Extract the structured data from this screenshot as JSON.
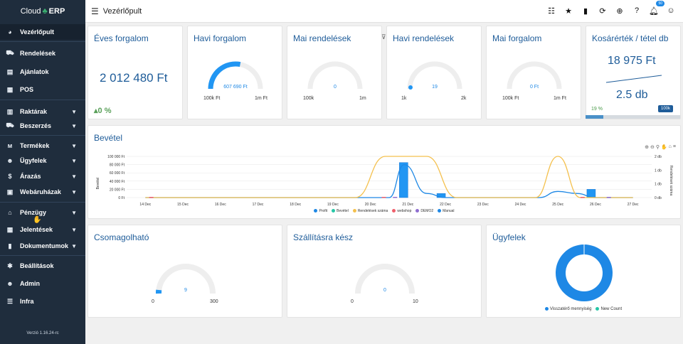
{
  "brand": {
    "name": "Cloud",
    "suffix": "ERP"
  },
  "sidebar": {
    "items": [
      {
        "label": "Vezérlőpult",
        "icon": "palette-icon"
      },
      {
        "label": "Rendelések",
        "icon": "cart-icon"
      },
      {
        "label": "Ajánlatok",
        "icon": "document-icon"
      },
      {
        "label": "POS",
        "icon": "register-icon"
      },
      {
        "label": "Raktárak",
        "icon": "warehouse-icon"
      },
      {
        "label": "Beszerzés",
        "icon": "truck-icon"
      },
      {
        "label": "Termékek",
        "icon": "products-icon"
      },
      {
        "label": "Ügyfelek",
        "icon": "users-icon"
      },
      {
        "label": "Árazás",
        "icon": "dollar-icon"
      },
      {
        "label": "Webáruházak",
        "icon": "store-icon"
      },
      {
        "label": "Pénzügy",
        "icon": "bank-icon"
      },
      {
        "label": "Jelentések",
        "icon": "table-icon"
      },
      {
        "label": "Dokumentumok",
        "icon": "file-icon"
      },
      {
        "label": "Beállítások",
        "icon": "gear-icon"
      },
      {
        "label": "Admin",
        "icon": "user-gear-icon"
      },
      {
        "label": "Infra",
        "icon": "server-icon"
      }
    ],
    "version": "Verzió 1.16.24-rc"
  },
  "topbar": {
    "title": "Vezérlőpult",
    "notification_count": "50"
  },
  "cards": {
    "yearly": {
      "title": "Éves forgalom",
      "value": "2 012 480 Ft",
      "trend": "0 %"
    },
    "monthly": {
      "title": "Havi forgalom",
      "value": "607 690 Ft",
      "min": "100k Ft",
      "max": "1m Ft",
      "level": 0.56
    },
    "daily_orders": {
      "title": "Mai rendelések",
      "value": "0",
      "min": "100k",
      "max": "1m",
      "level": 0
    },
    "monthly_orders": {
      "title": "Havi rendelések",
      "value": "19",
      "min": "1k",
      "max": "2k",
      "level": 0.02
    },
    "daily_revenue": {
      "title": "Mai forgalom",
      "value": "0 Ft",
      "min": "100k Ft",
      "max": "1m Ft",
      "level": 0
    },
    "basket": {
      "title": "Kosárérték / tétel db",
      "value": "18 975 Ft",
      "count": "2.5 db",
      "pct": "19 %",
      "target": "100k",
      "progress": 0.19
    },
    "packable": {
      "title": "Csomagolható",
      "value": "9",
      "min": "0",
      "max": "300",
      "level": 0.03
    },
    "ready": {
      "title": "Szállításra kész",
      "value": "0",
      "min": "0",
      "max": "10",
      "level": 0
    },
    "customers": {
      "title": "Ügyfelek"
    }
  },
  "revenue_chart": {
    "title": "Bevétel",
    "ylabel_left": "Bevétel",
    "ylabel_right": "Rendelések száma"
  },
  "customers_legend": [
    {
      "name": "Visszatérő mennyiség",
      "color": "#1e88e5"
    },
    {
      "name": "New Count",
      "color": "#26c6a6"
    }
  ],
  "chart_data": {
    "type": "line",
    "title": "Bevétel",
    "x": [
      "14 Dec",
      "15 Dec",
      "16 Dec",
      "17 Dec",
      "18 Dec",
      "19 Dec",
      "20 Dec",
      "21 Dec",
      "22 Dec",
      "23 Dec",
      "24 Dec",
      "25 Dec",
      "26 Dec",
      "27 Dec"
    ],
    "y_left_ticks": [
      "0 Ft",
      "20 000 Ft",
      "40 000 Ft",
      "60 000 Ft",
      "80 000 Ft",
      "100 000 Ft"
    ],
    "y_right_ticks": [
      "0 db",
      "1 db",
      "1 db",
      "2 db"
    ],
    "ylabel_left": "Bevétel",
    "ylabel_right": "Rendelések száma",
    "ylim_left": [
      0,
      100000
    ],
    "ylim_right": [
      0,
      2
    ],
    "series": [
      {
        "name": "Profit",
        "color": "#1e88e5",
        "kind": "line",
        "points": [
          [
            0,
            0
          ],
          [
            6,
            0
          ],
          [
            6.5,
            0
          ],
          [
            6.9,
            80000
          ],
          [
            7.5,
            10000
          ],
          [
            8,
            0
          ],
          [
            10.5,
            0
          ],
          [
            11,
            15000
          ],
          [
            11.5,
            10000
          ],
          [
            12,
            0
          ],
          [
            13,
            0
          ]
        ]
      },
      {
        "name": "Bevétel",
        "color": "#26c6a6",
        "kind": "bar",
        "values": [
          0,
          0,
          0,
          0,
          0,
          0,
          0,
          85000,
          10000,
          0,
          0,
          0,
          20000,
          0
        ]
      },
      {
        "name": "Rendelések száma",
        "color": "#f4c04d",
        "kind": "line-right",
        "points": [
          [
            0,
            0
          ],
          [
            5.6,
            0
          ],
          [
            6.4,
            2
          ],
          [
            7.5,
            2
          ],
          [
            8.3,
            0
          ],
          [
            10.4,
            0
          ],
          [
            11,
            2
          ],
          [
            11.6,
            0
          ],
          [
            13,
            0
          ]
        ]
      },
      {
        "name": "webshop",
        "color": "#ef5f6b",
        "kind": "legend"
      },
      {
        "name": "DEMO2",
        "color": "#8e6dcf",
        "kind": "legend"
      },
      {
        "name": "Manual",
        "color": "#1e88e5",
        "kind": "legend"
      }
    ]
  }
}
